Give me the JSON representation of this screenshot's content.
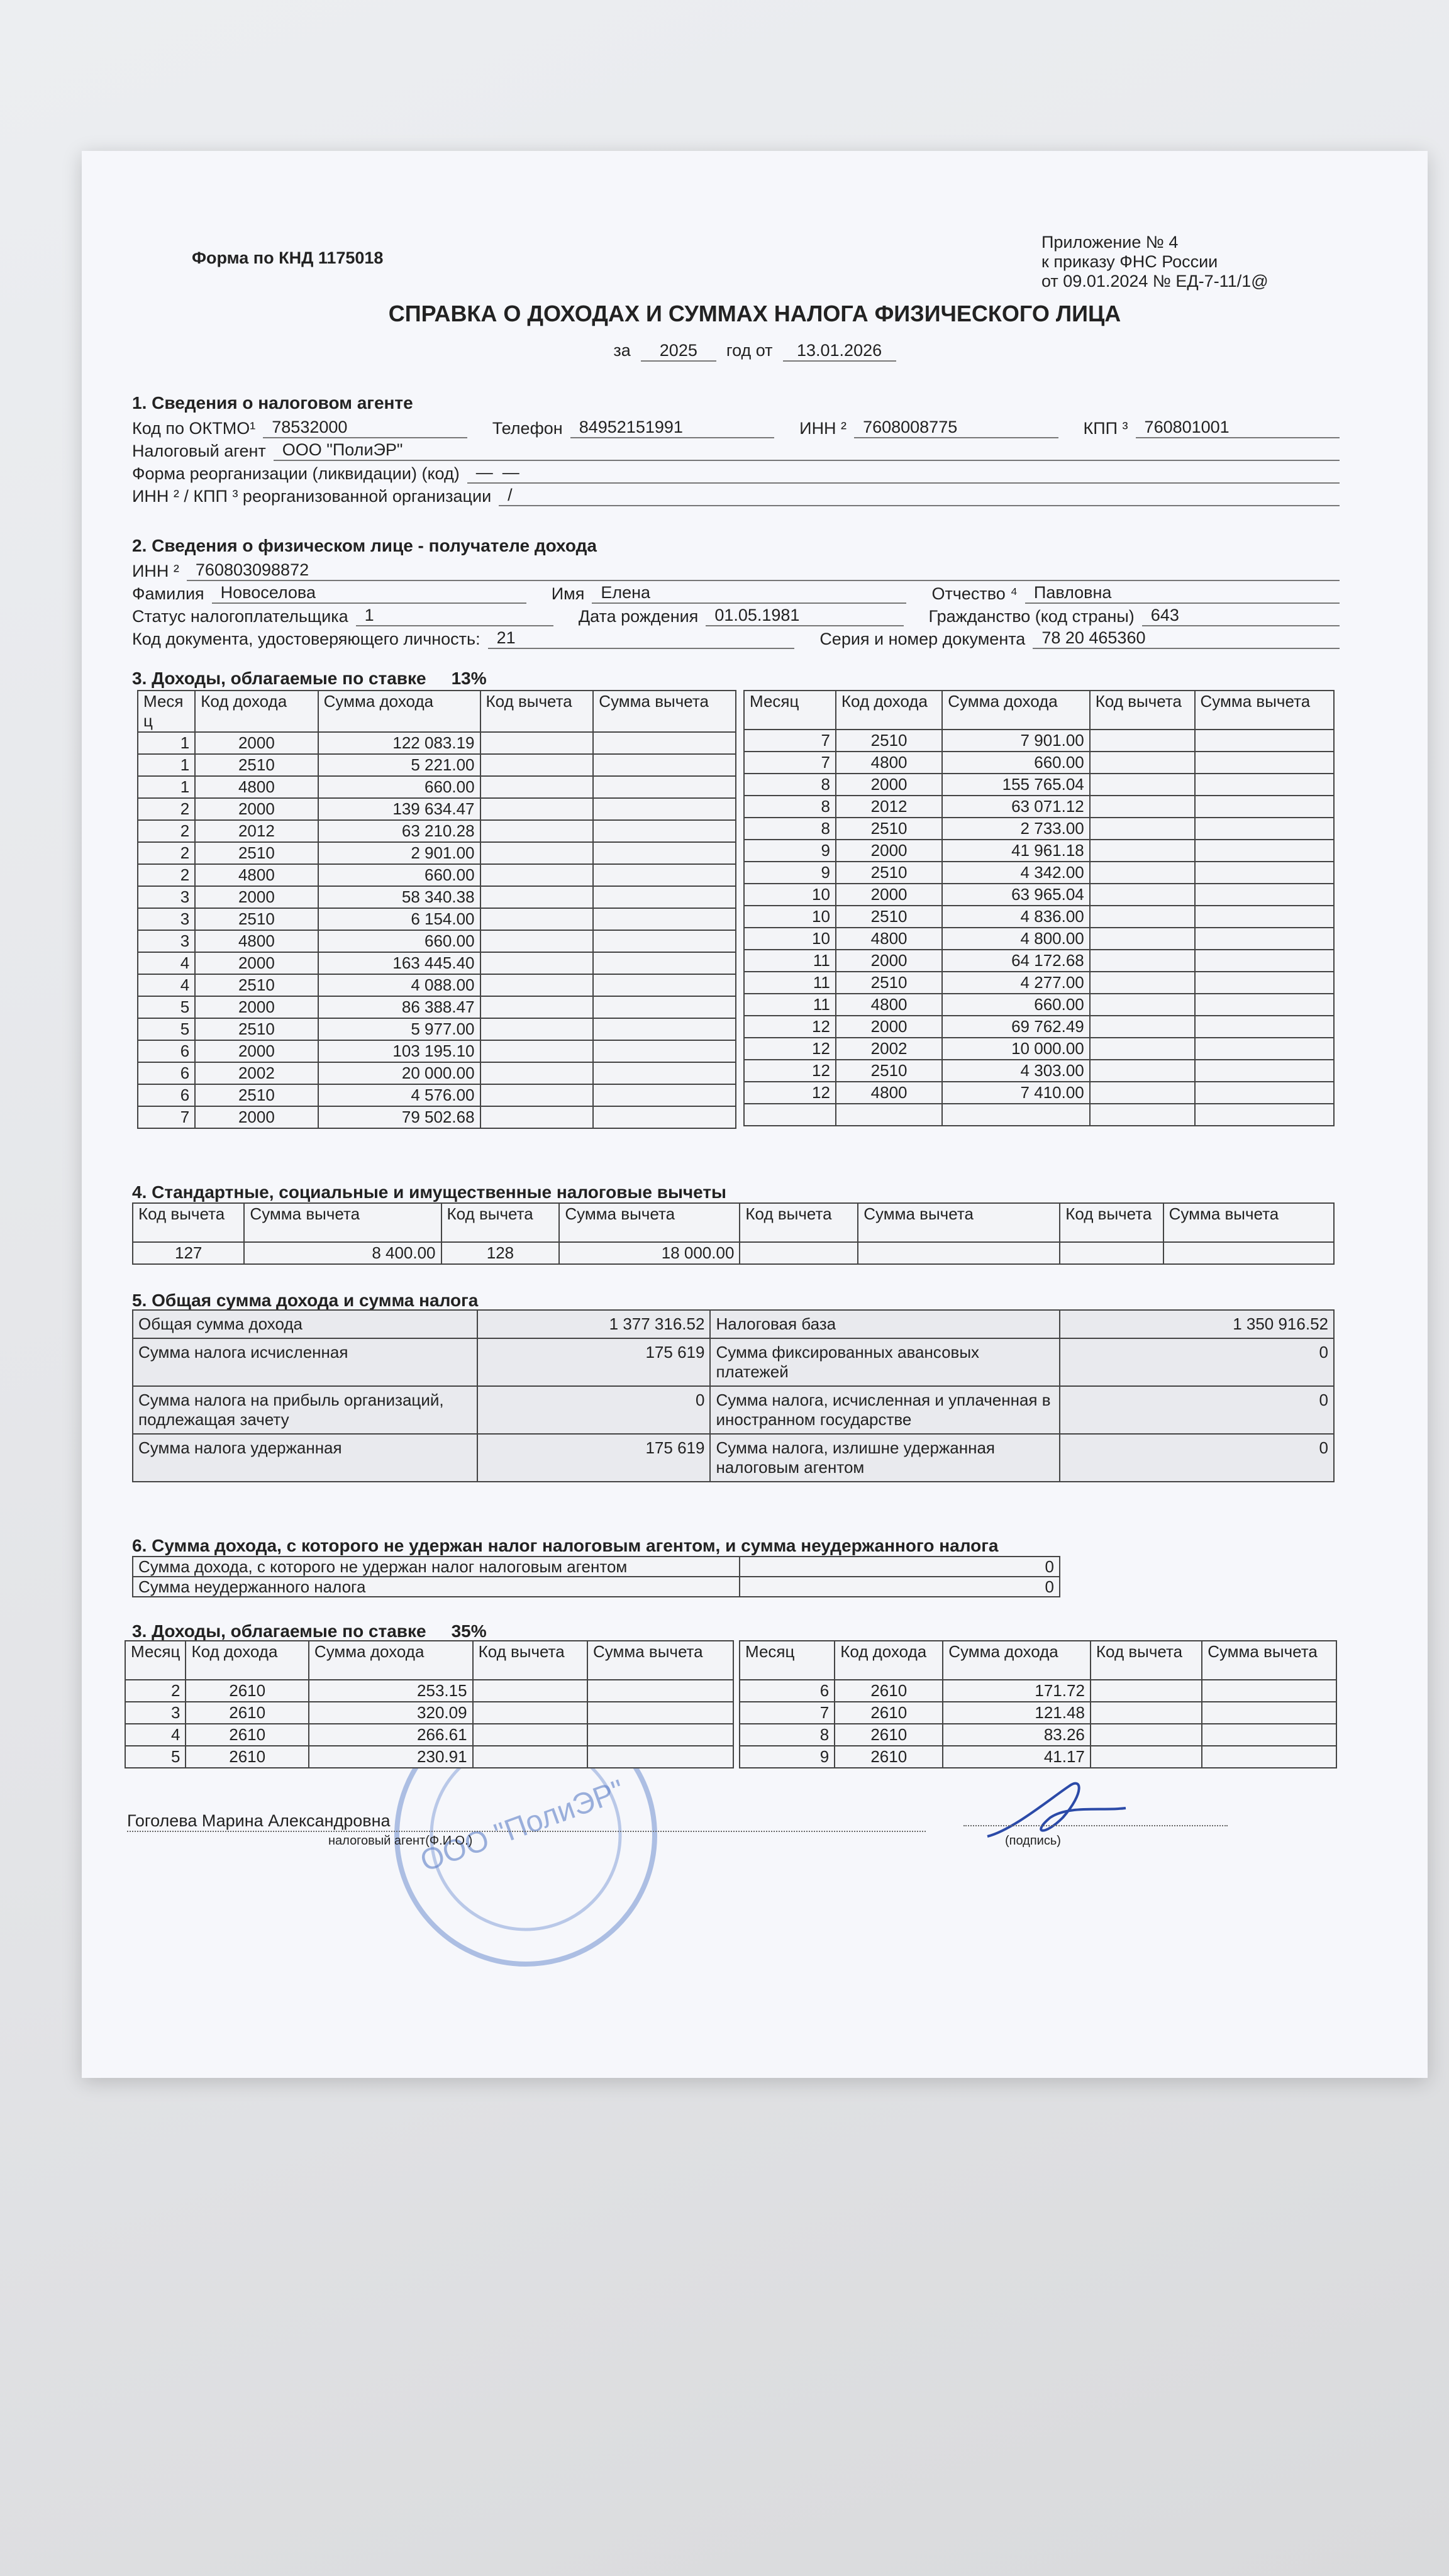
{
  "header": {
    "form_code": "Форма по КНД 1175018",
    "appendix": [
      "Приложение № 4",
      "к приказу ФНС России",
      "от 09.01.2024 № ЕД-7-11/1@"
    ],
    "title": "СПРАВКА О ДОХОДАХ И СУММАХ НАЛОГА ФИЗИЧЕСКОГО ЛИЦА",
    "for_label": "за",
    "year": "2025",
    "date_label": "год от",
    "date": "13.01.2026"
  },
  "section1": {
    "title": "1. Сведения о налоговом агенте",
    "rows": [
      [
        {
          "label": "Код по ОКТМО¹",
          "value": "78532000"
        },
        {
          "label": "Телефон",
          "value": "84952151991"
        },
        {
          "label": "ИНН ²",
          "value": "7608008775"
        },
        {
          "label": "КПП ³",
          "value": "760801001"
        }
      ],
      [
        {
          "label": "Налоговый агент",
          "value": "ООО \"ПолиЭР\""
        }
      ],
      [
        {
          "label": "Форма реорганизации (ликвидации)  (код)",
          "value": "—  —"
        }
      ],
      [
        {
          "label": "ИНН ² / КПП ³  реорганизованной организации",
          "value": "/"
        }
      ]
    ]
  },
  "section2": {
    "title": "2. Сведения о физическом лице - получателе дохода",
    "rows": [
      [
        {
          "label": "ИНН ²",
          "value": "760803098872"
        }
      ],
      [
        {
          "label": "Фамилия",
          "value": "Новоселова"
        },
        {
          "label": "Имя",
          "value": "Елена"
        },
        {
          "label": "Отчество ⁴",
          "value": "Павловна"
        }
      ],
      [
        {
          "label": "Статус налогоплательщика",
          "value": "1"
        },
        {
          "label": "Дата рождения",
          "value": "01.05.1981"
        },
        {
          "label": "Гражданство (код страны)",
          "value": "643"
        }
      ],
      [
        {
          "label": "Код документа, удостоверяющего личность:",
          "value": "21"
        },
        {
          "label": "Серия и номер документа",
          "value": "78 20 465360"
        }
      ]
    ]
  },
  "section3": {
    "title": "3. Доходы, облагаемые по ставке",
    "rate": "13%",
    "tables": [
      {
        "headers": [
          "Месяц",
          "Код дохода",
          "Сумма дохода",
          "Код вычета",
          "Сумма вычета"
        ],
        "rows": [
          [
            "1",
            "2000",
            "122 083.19"
          ],
          [
            "1",
            "2510",
            "5 221.00"
          ],
          [
            "1",
            "4800",
            "660.00"
          ],
          [
            "2",
            "2000",
            "139 634.47"
          ],
          [
            "2",
            "2012",
            "63 210.28"
          ],
          [
            "2",
            "2510",
            "2 901.00"
          ],
          [
            "2",
            "4800",
            "660.00"
          ],
          [
            "3",
            "2000",
            "58 340.38"
          ],
          [
            "3",
            "2510",
            "6 154.00"
          ],
          [
            "3",
            "4800",
            "660.00"
          ],
          [
            "4",
            "2000",
            "163 445.40"
          ],
          [
            "4",
            "2510",
            "4 088.00"
          ],
          [
            "5",
            "2000",
            "86 388.47"
          ],
          [
            "5",
            "2510",
            "5 977.00"
          ],
          [
            "6",
            "2000",
            "103 195.10"
          ],
          [
            "6",
            "2002",
            "20 000.00"
          ],
          [
            "6",
            "2510",
            "4 576.00"
          ],
          [
            "7",
            "2000",
            "79 502.68"
          ]
        ]
      },
      {
        "headers": [
          "Месяц",
          "Код дохода",
          "Сумма дохода",
          "Код вычета",
          "Сумма вычета"
        ],
        "rows": [
          [
            "7",
            "2510",
            "7 901.00"
          ],
          [
            "7",
            "4800",
            "660.00"
          ],
          [
            "8",
            "2000",
            "155 765.04"
          ],
          [
            "8",
            "2012",
            "63 071.12"
          ],
          [
            "8",
            "2510",
            "2 733.00"
          ],
          [
            "9",
            "2000",
            "41 961.18"
          ],
          [
            "9",
            "2510",
            "4 342.00"
          ],
          [
            "10",
            "2000",
            "63 965.04"
          ],
          [
            "10",
            "2510",
            "4 836.00"
          ],
          [
            "10",
            "4800",
            "4 800.00"
          ],
          [
            "11",
            "2000",
            "64 172.68"
          ],
          [
            "11",
            "2510",
            "4 277.00"
          ],
          [
            "11",
            "4800",
            "660.00"
          ],
          [
            "12",
            "2000",
            "69 762.49"
          ],
          [
            "12",
            "2002",
            "10 000.00"
          ],
          [
            "12",
            "2510",
            "4 303.00"
          ],
          [
            "12",
            "4800",
            "7 410.00"
          ]
        ]
      }
    ]
  },
  "section4": {
    "title": "4. Стандартные, социальные и имущественные налоговые вычеты",
    "headers": [
      "Код вычета",
      "Сумма вычета",
      "Код вычета",
      "Сумма вычета",
      "Код вычета",
      "Сумма вычета",
      "Код вычета",
      "Сумма вычета"
    ],
    "rows": [
      [
        "127",
        "8 400.00",
        "128",
        "18 000.00"
      ]
    ]
  },
  "section5": {
    "title": "5. Общая сумма дохода и сумма налога",
    "rows": [
      [
        "Общая сумма дохода",
        "1 377 316.52",
        "Налоговая база",
        "1 350 916.52"
      ],
      [
        "Сумма налога исчисленная",
        "175 619",
        "Сумма фиксированных авансовых платежей",
        "0"
      ],
      [
        "Сумма налога на прибыль организаций, подлежащая зачету",
        "0",
        "Сумма налога, исчисленная и уплаченная в иностранном государстве",
        "0"
      ],
      [
        "Сумма налога удержанная",
        "175 619",
        "Сумма налога, излишне удержанная налоговым агентом",
        "0"
      ]
    ]
  },
  "section6": {
    "title": "6. Сумма дохода, с которого не удержан налог налоговым агентом, и сумма неудержанного налога",
    "rows": [
      [
        "Сумма дохода, с которого не удержан налог налоговым агентом",
        "0"
      ],
      [
        "Сумма неудержанного налога",
        "0"
      ]
    ]
  },
  "section7": {
    "title": "3. Доходы, облагаемые по ставке",
    "rate": "35%",
    "tables": [
      {
        "headers": [
          "Месяц",
          "Код дохода",
          "Сумма дохода",
          "Код вычета",
          "Сумма вычета"
        ],
        "rows": [
          [
            "2",
            "2610",
            "253.15"
          ],
          [
            "3",
            "2610",
            "320.09"
          ],
          [
            "4",
            "2610",
            "266.61"
          ],
          [
            "5",
            "2610",
            "230.91"
          ]
        ]
      },
      {
        "headers": [
          "Месяц",
          "Код дохода",
          "Сумма дохода",
          "Код вычета",
          "Сумма вычета"
        ],
        "rows": [
          [
            "6",
            "2610",
            "171.72"
          ],
          [
            "7",
            "2610",
            "121.48"
          ],
          [
            "8",
            "2610",
            "83.26"
          ],
          [
            "9",
            "2610",
            "41.17"
          ]
        ]
      }
    ]
  },
  "footer": {
    "signer": "Гоголева Марина Александровна",
    "signer_caption": "налоговый агент(Ф.И.О.)",
    "sign_caption": "(подпись)"
  },
  "stamp": {
    "text": "ООО \"ПолиЭР\""
  }
}
